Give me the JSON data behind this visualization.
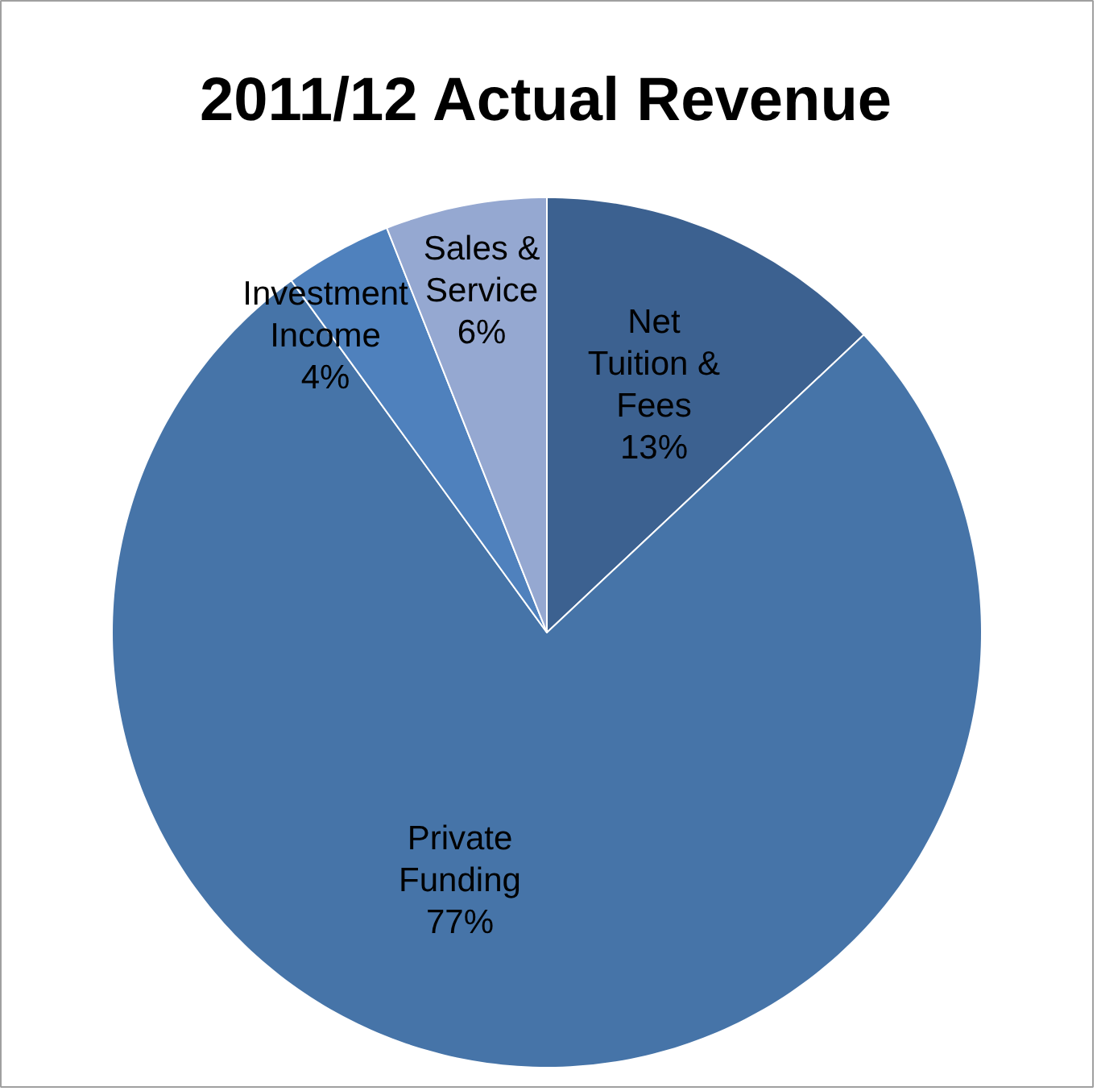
{
  "chart_data": {
    "type": "pie",
    "title": "2011/12 Actual Revenue",
    "categories": [
      "Net Tuition & Fees",
      "Private Funding",
      "Investment Income",
      "Sales & Service"
    ],
    "values": [
      13,
      77,
      4,
      6
    ],
    "value_labels": [
      "13%",
      "77%",
      "4%",
      "6%"
    ],
    "colors": [
      "#3c6190",
      "#4674a8",
      "#4f81bd",
      "#95a8d1"
    ]
  }
}
